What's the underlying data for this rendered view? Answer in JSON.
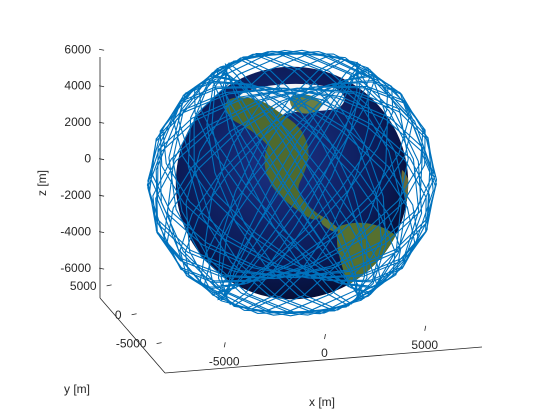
{
  "chart_data": {
    "type": "line",
    "subtype": "3d-orbit-trajectory",
    "title": "",
    "xlabel": "x [m]",
    "ylabel": "y [m]",
    "zlabel": "z [m]",
    "xlim": [
      -8000,
      8000
    ],
    "ylim": [
      -6500,
      6500
    ],
    "zlim": [
      -6500,
      7000
    ],
    "xticks": [
      -5000,
      0,
      5000
    ],
    "yticks": [
      5000,
      0,
      -5000
    ],
    "zticks": [
      6000,
      4000,
      2000,
      0,
      -2000,
      -4000,
      -6000
    ],
    "xtick_labels": [
      "-5000",
      "0",
      "5000"
    ],
    "ytick_labels": [
      "5000",
      "0",
      "-5000"
    ],
    "ztick_labels": [
      "6000",
      "4000",
      "2000",
      "0",
      "-2000",
      "-4000",
      "-6000"
    ],
    "grid": false,
    "earth": {
      "radius": 6371,
      "texture": "earth-globe-icon"
    },
    "series": [
      {
        "name": "",
        "color": "#0072BD",
        "orbit_radius": 7000,
        "inclination_deg": 63,
        "revolutions": 42
      }
    ]
  },
  "colors": {
    "ocean": "#0b1a55",
    "land": "#4f6a2e",
    "ice": "#ffffff",
    "axis": "#262626"
  }
}
